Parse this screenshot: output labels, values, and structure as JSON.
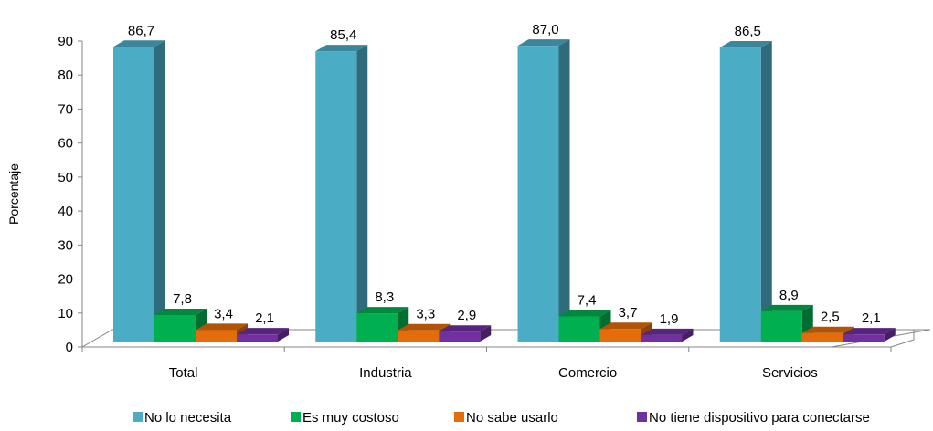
{
  "chart_data": {
    "type": "bar",
    "title": "",
    "xlabel": "",
    "ylabel": "Porcentaje",
    "ylim": [
      0,
      90
    ],
    "yticks": [
      0,
      10,
      20,
      30,
      40,
      50,
      60,
      70,
      80,
      90
    ],
    "categories": [
      "Total",
      "Industria",
      "Comercio",
      "Servicios"
    ],
    "series": [
      {
        "name": "No lo necesita",
        "color": "#4bacc6",
        "labels": [
          "86,7",
          "85,4",
          "87,0",
          "86,5"
        ],
        "values": [
          86.7,
          85.4,
          87.0,
          86.5
        ]
      },
      {
        "name": "Es muy costoso",
        "color": "#00b050",
        "labels": [
          "7,8",
          "8,3",
          "7,4",
          "8,9"
        ],
        "values": [
          7.8,
          8.3,
          7.4,
          8.9
        ]
      },
      {
        "name": "No sabe usarlo",
        "color": "#e46c0a",
        "labels": [
          "3,4",
          "3,3",
          "3,7",
          "2,5"
        ],
        "values": [
          3.4,
          3.3,
          3.7,
          2.5
        ]
      },
      {
        "name": "No tiene dispositivo para conectarse",
        "color": "#7030a0",
        "labels": [
          "2,1",
          "2,9",
          "1,9",
          "2,1"
        ],
        "values": [
          2.1,
          2.9,
          1.9,
          2.1
        ]
      }
    ],
    "legend_position": "bottom",
    "grid": false,
    "style": "3d-column"
  }
}
